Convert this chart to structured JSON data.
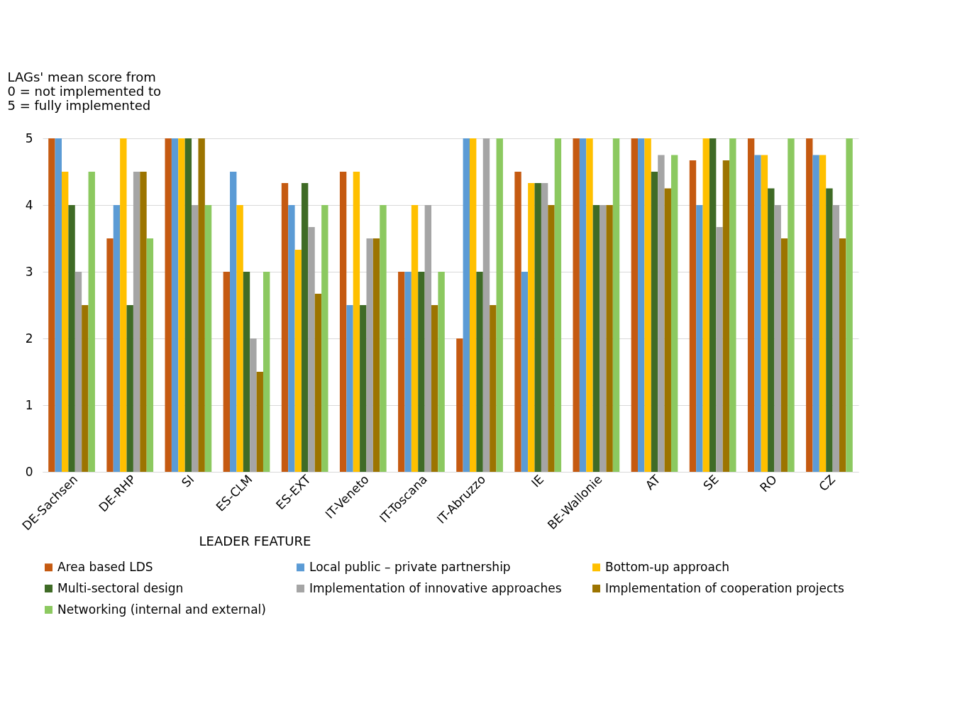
{
  "chart_data": {
    "type": "bar",
    "ylabel": "LAGs' mean score from\n0 = not implemented to\n5 = fully implemented",
    "xlabel": "LEADER FEATURE",
    "categories": [
      "DE-Sachsen",
      "DE-RHP",
      "SI",
      "ES-CLM",
      "ES-EXT",
      "IT-Veneto",
      "IT-Toscana",
      "IT-Abruzzo",
      "IE",
      "BE-Wallonie",
      "AT",
      "SE",
      "RO",
      "CZ"
    ],
    "series": [
      {
        "name": "Area based LDS",
        "color": "#c55a11",
        "values": [
          5,
          3.5,
          5,
          3,
          4.33,
          4.5,
          3,
          2,
          4.5,
          5,
          5,
          4.67,
          5,
          5
        ]
      },
      {
        "name": "Local public – private partnership",
        "color": "#5b9bd5",
        "values": [
          5,
          4,
          5,
          4.5,
          4,
          2.5,
          3,
          5,
          3,
          5,
          5,
          4,
          4.75,
          4.75
        ]
      },
      {
        "name": "Bottom-up approach",
        "color": "#ffc000",
        "values": [
          4.5,
          5,
          5,
          4,
          3.33,
          4.5,
          4,
          5,
          4.33,
          5,
          5,
          5,
          4.75,
          4.75
        ]
      },
      {
        "name": "Multi-sectoral design",
        "color": "#3f6b26",
        "values": [
          4,
          2.5,
          5,
          3,
          4.33,
          2.5,
          3,
          3,
          4.33,
          4,
          4.5,
          5,
          4.25,
          4.25
        ]
      },
      {
        "name": "Implementation of innovative approaches",
        "color": "#a5a5a5",
        "values": [
          3,
          4.5,
          4,
          2,
          3.67,
          3.5,
          4,
          5,
          4.33,
          4,
          4.75,
          3.67,
          4,
          4
        ]
      },
      {
        "name": "Implementation of cooperation projects",
        "color": "#9c7400",
        "values": [
          2.5,
          4.5,
          5,
          1.5,
          2.67,
          3.5,
          2.5,
          2.5,
          4,
          4,
          4.25,
          4.67,
          3.5,
          3.5
        ]
      },
      {
        "name": "Networking (internal and external)",
        "color": "#8cc960",
        "values": [
          4.5,
          3.5,
          4,
          3,
          4,
          4,
          3,
          5,
          5,
          5,
          4.75,
          5,
          5,
          5
        ]
      }
    ],
    "ylim": [
      0,
      5
    ],
    "yticks": [
      0,
      1,
      2,
      3,
      4,
      5
    ],
    "grid": "y",
    "legend": "bottom"
  }
}
